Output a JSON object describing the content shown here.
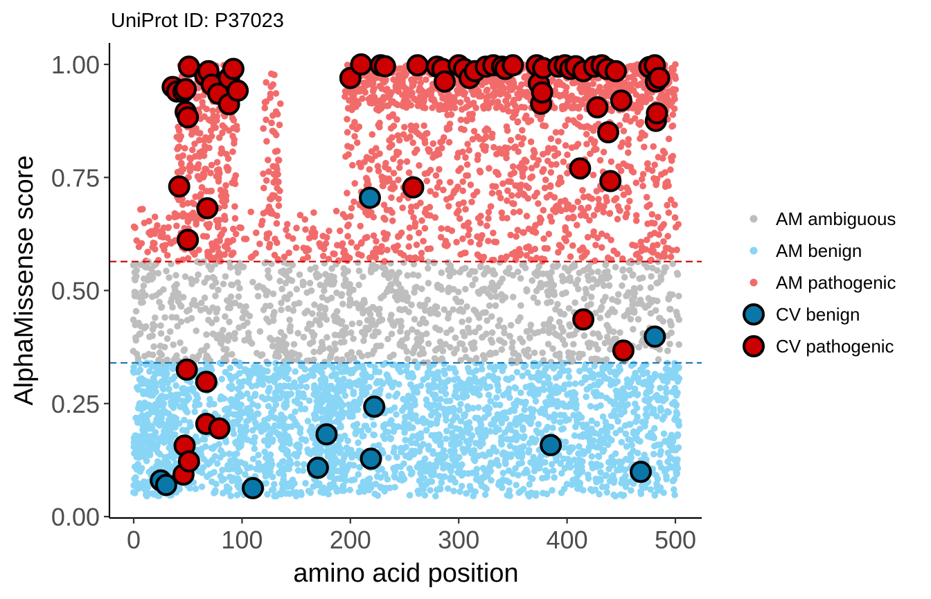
{
  "chart_data": {
    "type": "scatter",
    "title": "UniProt ID: P37023",
    "xlabel": "amino acid position",
    "ylabel": "AlphaMissense score",
    "xlim": [
      -25,
      530
    ],
    "ylim": [
      -0.02,
      1.04
    ],
    "x_ticks": [
      0,
      100,
      200,
      300,
      400,
      500
    ],
    "x_tick_labels": [
      "0",
      "100",
      "200",
      "300",
      "400",
      "500"
    ],
    "y_ticks": [
      0,
      0.25,
      0.5,
      0.75,
      1.0
    ],
    "y_tick_labels": [
      "0.00",
      "0.25",
      "0.50",
      "0.75",
      "1.00"
    ],
    "grid": false,
    "legend_position": "right",
    "thresholds": [
      {
        "value": 0.564,
        "color": "#cc0000",
        "style": "dashed"
      },
      {
        "value": 0.34,
        "color": "#1f77b4",
        "style": "dashed"
      }
    ],
    "background_density": {
      "protein_length": 503,
      "description_note": "dense AlphaMissense points for every position; benign < 0.34, ambiguous 0.34-0.564, pathogenic > 0.564",
      "sparse_ranges": [
        [
          100,
          120
        ],
        [
          145,
          165
        ]
      ],
      "pathogenic_rich_ranges": [
        [
          40,
          95
        ],
        [
          120,
          135
        ],
        [
          195,
          500
        ]
      ]
    },
    "series": [
      {
        "name": "AM ambiguous",
        "color": "#bebebe",
        "marker": "dot"
      },
      {
        "name": "AM benign",
        "color": "#89d5f5",
        "marker": "dot"
      },
      {
        "name": "AM pathogenic",
        "color": "#f26b6b",
        "marker": "dot"
      },
      {
        "name": "CV benign",
        "color": "#0a77a8",
        "marker": "ring",
        "points": [
          [
            25,
            0.08
          ],
          [
            30,
            0.07
          ],
          [
            110,
            0.063
          ],
          [
            170,
            0.108
          ],
          [
            178,
            0.182
          ],
          [
            218,
            0.705
          ],
          [
            219,
            0.128
          ],
          [
            222,
            0.243
          ],
          [
            385,
            0.158
          ],
          [
            468,
            0.099
          ],
          [
            481,
            0.398
          ]
        ]
      },
      {
        "name": "CV pathogenic",
        "color": "#cc0000",
        "marker": "ring",
        "points": [
          [
            36,
            0.95
          ],
          [
            40,
            0.94
          ],
          [
            42,
            0.73
          ],
          [
            46,
            0.94
          ],
          [
            48,
            0.945
          ],
          [
            48,
            0.895
          ],
          [
            49,
            0.325
          ],
          [
            50,
            0.612
          ],
          [
            50,
            0.883
          ],
          [
            51,
            0.995
          ],
          [
            66,
            0.975
          ],
          [
            67,
            0.205
          ],
          [
            67,
            0.298
          ],
          [
            68,
            0.682
          ],
          [
            69,
            0.985
          ],
          [
            72,
            0.955
          ],
          [
            78,
            0.935
          ],
          [
            79,
            0.195
          ],
          [
            88,
            0.97
          ],
          [
            88,
            0.912
          ],
          [
            92,
            0.99
          ],
          [
            96,
            0.942
          ],
          [
            46,
            0.093
          ],
          [
            47,
            0.157
          ],
          [
            51,
            0.122
          ],
          [
            200,
            0.97
          ],
          [
            210,
            1.0
          ],
          [
            228,
            0.998
          ],
          [
            232,
            0.996
          ],
          [
            258,
            0.728
          ],
          [
            262,
            0.998
          ],
          [
            280,
            0.995
          ],
          [
            285,
            0.99
          ],
          [
            287,
            0.962
          ],
          [
            300,
            0.998
          ],
          [
            305,
            0.99
          ],
          [
            310,
            0.97
          ],
          [
            315,
            0.985
          ],
          [
            325,
            0.995
          ],
          [
            332,
            0.998
          ],
          [
            340,
            0.995
          ],
          [
            343,
            0.99
          ],
          [
            350,
            0.998
          ],
          [
            372,
            0.998
          ],
          [
            374,
            0.958
          ],
          [
            376,
            0.913
          ],
          [
            377,
            0.938
          ],
          [
            378,
            0.992
          ],
          [
            392,
            0.995
          ],
          [
            398,
            0.998
          ],
          [
            403,
            0.99
          ],
          [
            408,
            0.996
          ],
          [
            412,
            0.77
          ],
          [
            415,
            0.436
          ],
          [
            415,
            0.985
          ],
          [
            425,
            0.995
          ],
          [
            428,
            0.905
          ],
          [
            432,
            0.998
          ],
          [
            437,
            0.99
          ],
          [
            438,
            0.85
          ],
          [
            440,
            0.742
          ],
          [
            445,
            0.985
          ],
          [
            450,
            0.92
          ],
          [
            452,
            0.367
          ],
          [
            476,
            0.994
          ],
          [
            481,
            0.998
          ],
          [
            482,
            0.962
          ],
          [
            482,
            0.875
          ],
          [
            483,
            0.892
          ],
          [
            485,
            0.97
          ]
        ]
      }
    ]
  }
}
